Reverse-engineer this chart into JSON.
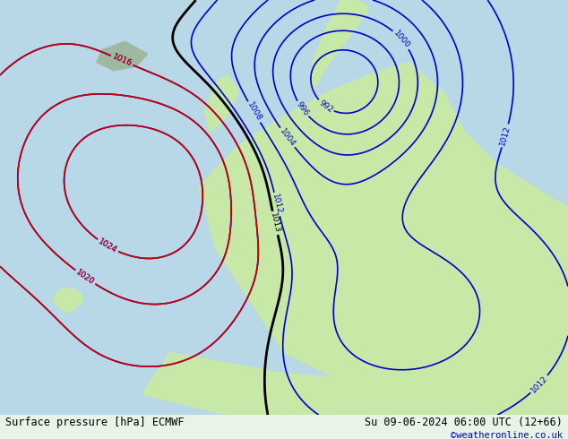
{
  "title_left": "Surface pressure [hPa] ECMWF",
  "title_right": "Su 09-06-2024 06:00 UTC (12+66)",
  "watermark": "©weatheronline.co.uk",
  "bg_color": "#e8f4e8",
  "land_color": "#c8e8b0",
  "sea_color": "#d0e8f0",
  "fig_width": 6.34,
  "fig_height": 4.9,
  "dpi": 100,
  "bottom_bar_color": "#f0f0f0",
  "bottom_bar_height": 0.055
}
